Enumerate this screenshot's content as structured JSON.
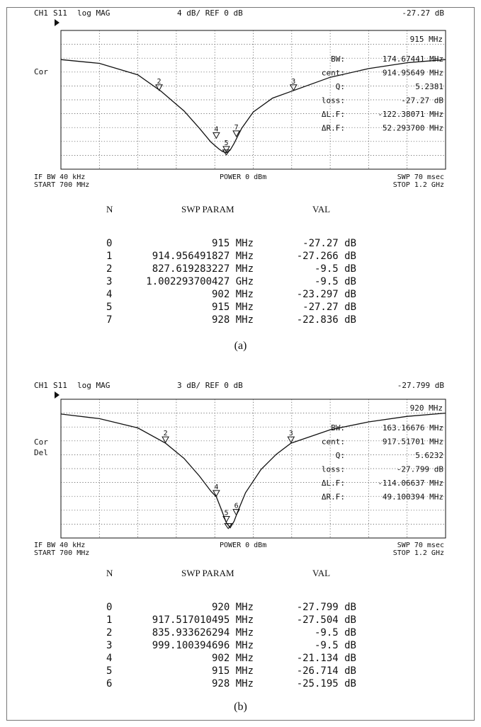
{
  "chart_data": [
    {
      "type": "line",
      "header": {
        "channel": "CH1",
        "param": "S11",
        "format": "log MAG",
        "scale": "4 dB/ REF 0 dB",
        "marker_value": "-27.27 dB"
      },
      "marker_freq": "915 MHz",
      "left_labels": [
        "Cor"
      ],
      "footer": {
        "left1": "IF BW 40 kHz",
        "left2": "START  700 MHz",
        "center": "POWER  0 dBm",
        "right1": "SWP  70 msec",
        "right2": "STOP  1.2 GHz"
      },
      "stats": [
        {
          "label": "BW:",
          "value": "174.67441 MHz"
        },
        {
          "label": "cent:",
          "value": "914.95649 MHz"
        },
        {
          "label": "Q:",
          "value": "5.2381"
        },
        {
          "label": "loss:",
          "value": "-27.27 dB"
        },
        {
          "label": "ΔL.F:",
          "value": "-122.38071 MHz"
        },
        {
          "label": "ΔR.F:",
          "value": "52.293700 MHz"
        }
      ],
      "x_range_mhz": [
        700,
        1200
      ],
      "y_range_db": [
        -32,
        8
      ],
      "ref_db": 0,
      "db_per_div": 4,
      "trace": {
        "x": [
          700,
          750,
          800,
          830,
          860,
          880,
          895,
          905,
          910,
          915,
          920,
          925,
          935,
          950,
          975,
          1000,
          1050,
          1100,
          1150,
          1200
        ],
        "y": [
          -0.4,
          -1.5,
          -4.8,
          -9.5,
          -15.2,
          -20.2,
          -24.2,
          -26.1,
          -26.9,
          -27.27,
          -26.5,
          -24.6,
          -20.2,
          -15.5,
          -11.5,
          -9.5,
          -5.5,
          -3.0,
          -1.3,
          -0.4
        ]
      },
      "markers": [
        {
          "num": "2",
          "x": 827.6,
          "y": -9.5
        },
        {
          "num": "3",
          "x": 1002.3,
          "y": -9.5
        },
        {
          "num": "4",
          "x": 902,
          "y": -23.3
        },
        {
          "num": "7",
          "x": 928,
          "y": -22.8
        },
        {
          "num": "5",
          "x": 915,
          "y": -27.27
        },
        {
          "num": "1",
          "x": 915,
          "y": -27.27
        }
      ],
      "table": {
        "headers": [
          "N",
          "SWP PARAM",
          "VAL"
        ],
        "rows": [
          {
            "n": "0",
            "param": "915 MHz",
            "val": "-27.27 dB"
          },
          {
            "n": "1",
            "param": "914.956491827 MHz",
            "val": "-27.266 dB"
          },
          {
            "n": "2",
            "param": "827.619283227 MHz",
            "val": "-9.5 dB"
          },
          {
            "n": "3",
            "param": "1.002293700427 GHz",
            "val": "-9.5 dB"
          },
          {
            "n": "4",
            "param": "902 MHz",
            "val": "-23.297 dB"
          },
          {
            "n": "5",
            "param": "915 MHz",
            "val": "-27.27 dB"
          },
          {
            "n": "7",
            "param": "928 MHz",
            "val": "-22.836 dB"
          }
        ]
      },
      "caption": "(a)"
    },
    {
      "type": "line",
      "header": {
        "channel": "CH1",
        "param": "S11",
        "format": "log MAG",
        "scale": "3 dB/ REF 0 dB",
        "marker_value": "-27.799 dB"
      },
      "marker_freq": "920 MHz",
      "left_labels": [
        "Cor",
        "Del"
      ],
      "footer": {
        "left1": "IF BW 40 kHz",
        "left2": "START  700 MHz",
        "center": "POWER  0 dBm",
        "right1": "SWP  70 msec",
        "right2": "STOP  1.2 GHz"
      },
      "stats": [
        {
          "label": "BW:",
          "value": "163.16676 MHz"
        },
        {
          "label": "cent:",
          "value": "917.51701 MHz"
        },
        {
          "label": "Q:",
          "value": "5.6232"
        },
        {
          "label": "loss:",
          "value": "-27.799 dB"
        },
        {
          "label": "ΔL.F:",
          "value": "-114.06637 MHz"
        },
        {
          "label": "ΔR.F:",
          "value": "49.100394 MHz"
        }
      ],
      "x_range_mhz": [
        700,
        1200
      ],
      "y_range_db": [
        -30,
        0
      ],
      "ref_db": 0,
      "db_per_div": 3,
      "trace": {
        "x": [
          700,
          750,
          800,
          836,
          860,
          880,
          895,
          902,
          908,
          915,
          920,
          925,
          930,
          940,
          960,
          980,
          999,
          1050,
          1100,
          1150,
          1200
        ],
        "y": [
          -3.2,
          -4.2,
          -6.2,
          -9.5,
          -12.8,
          -16.6,
          -19.9,
          -21.1,
          -23.6,
          -26.7,
          -27.8,
          -26.4,
          -24.2,
          -20.2,
          -15.2,
          -11.9,
          -9.5,
          -6.6,
          -4.9,
          -3.7,
          -3.0
        ]
      },
      "markers": [
        {
          "num": "2",
          "x": 835.9,
          "y": -9.5
        },
        {
          "num": "3",
          "x": 999.1,
          "y": -9.5
        },
        {
          "num": "4",
          "x": 902,
          "y": -21.1
        },
        {
          "num": "5",
          "x": 915,
          "y": -26.7
        },
        {
          "num": "6",
          "x": 928,
          "y": -25.2
        },
        {
          "num": "1",
          "x": 917.5,
          "y": -27.5
        }
      ],
      "table": {
        "headers": [
          "N",
          "SWP PARAM",
          "VAL"
        ],
        "rows": [
          {
            "n": "0",
            "param": "920 MHz",
            "val": "-27.799 dB"
          },
          {
            "n": "1",
            "param": "917.517010495 MHz",
            "val": "-27.504 dB"
          },
          {
            "n": "2",
            "param": "835.933626294 MHz",
            "val": "-9.5 dB"
          },
          {
            "n": "3",
            "param": "999.100394696 MHz",
            "val": "-9.5 dB"
          },
          {
            "n": "4",
            "param": "902 MHz",
            "val": "-21.134 dB"
          },
          {
            "n": "5",
            "param": "915 MHz",
            "val": "-26.714 dB"
          },
          {
            "n": "6",
            "param": "928 MHz",
            "val": "-25.195 dB"
          }
        ]
      },
      "caption": "(b)"
    }
  ]
}
